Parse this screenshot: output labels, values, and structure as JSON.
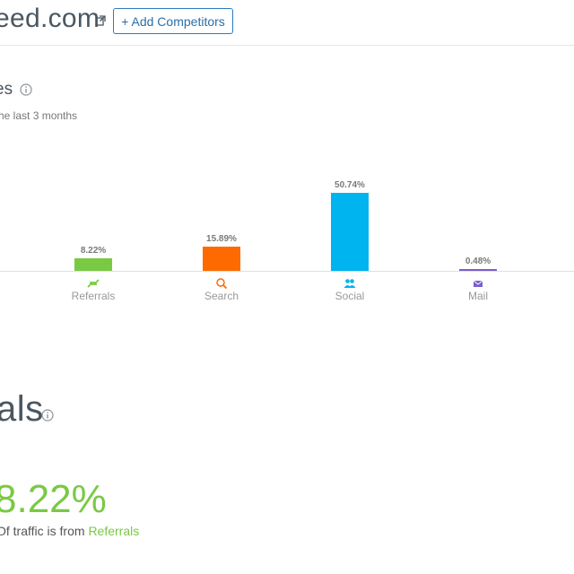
{
  "header": {
    "domain_text": "eed.com",
    "add_button_label": "+ Add Competitors"
  },
  "traffic_sources": {
    "title": "es",
    "subtitle": "he last 3 months"
  },
  "chart_data": {
    "type": "bar",
    "categories": [
      "Referrals",
      "Search",
      "Social",
      "Mail"
    ],
    "values": [
      8.22,
      15.89,
      50.74,
      0.48
    ],
    "value_labels": [
      "8.22%",
      "15.89%",
      "50.74%",
      "0.48%"
    ],
    "colors": [
      "#7ac943",
      "#ff6a00",
      "#00b4ef",
      "#7b5fcf"
    ],
    "icons": [
      "referrals-arrows-icon",
      "search-magnifier-icon",
      "social-users-icon",
      "mail-envelope-icon"
    ],
    "ylim": [
      0,
      58
    ]
  },
  "referrals_section": {
    "title": "als",
    "percent": "8.22%",
    "description_prefix": "Of traffic is from ",
    "description_link": "Referrals"
  },
  "colors": {
    "accent": "#2a7bbf",
    "referrals": "#7ac943",
    "search": "#ff6a00",
    "social": "#00b4ef",
    "mail": "#7b5fcf"
  }
}
